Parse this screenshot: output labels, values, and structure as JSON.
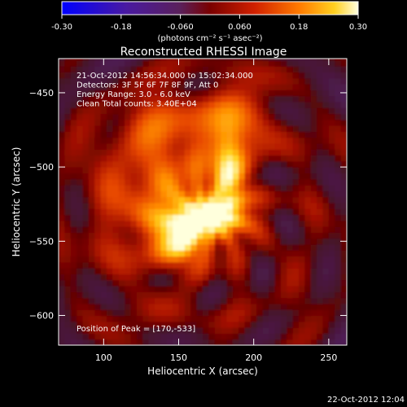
{
  "chart_data": {
    "type": "heatmap",
    "title": "Reconstructed RHESSI Image",
    "xlabel": "Heliocentric X (arcsec)",
    "ylabel": "Heliocentric Y (arcsec)",
    "xlim": [
      70,
      262
    ],
    "ylim": [
      -620,
      -427
    ],
    "xticks": [
      100,
      150,
      200,
      250
    ],
    "yticks": [
      -600,
      -550,
      -500,
      -450
    ],
    "colorbar": {
      "ticks": [
        "-0.30",
        "-0.18",
        "-0.060",
        "0.060",
        "0.18",
        "0.30"
      ],
      "range": [
        -0.3,
        0.3
      ],
      "unit_label": "(photons cm⁻² s⁻¹ asec⁻²)"
    },
    "annotations": [
      "21-Oct-2012 14:56:34.000 to 15:02:34.000",
      "Detectors: 3F 5F 6F 7F 8F 9F, Att 0",
      "Energy Range: 3.0 - 6.0 keV",
      "Clean     Total counts: 3.40E+04"
    ],
    "peak_label": "Position of Peak = [170,-533]",
    "peak": [
      170,
      -533
    ],
    "sources": [
      {
        "x": 170,
        "y": -533,
        "amp": 0.3,
        "sx": 16,
        "sy": 9
      },
      {
        "x": 183,
        "y": -505,
        "amp": 0.22,
        "sx": 7,
        "sy": 20
      },
      {
        "x": 152,
        "y": -548,
        "amp": 0.24,
        "sx": 10,
        "sy": 9
      },
      {
        "x": 140,
        "y": -520,
        "amp": 0.12,
        "sx": 28,
        "sy": 32
      },
      {
        "x": 190,
        "y": -470,
        "amp": 0.1,
        "sx": 14,
        "sy": 18
      },
      {
        "x": 145,
        "y": -470,
        "amp": 0.07,
        "sx": 22,
        "sy": 14
      }
    ]
  },
  "footer": {
    "timestamp": "22-Oct-2012 12:04"
  }
}
